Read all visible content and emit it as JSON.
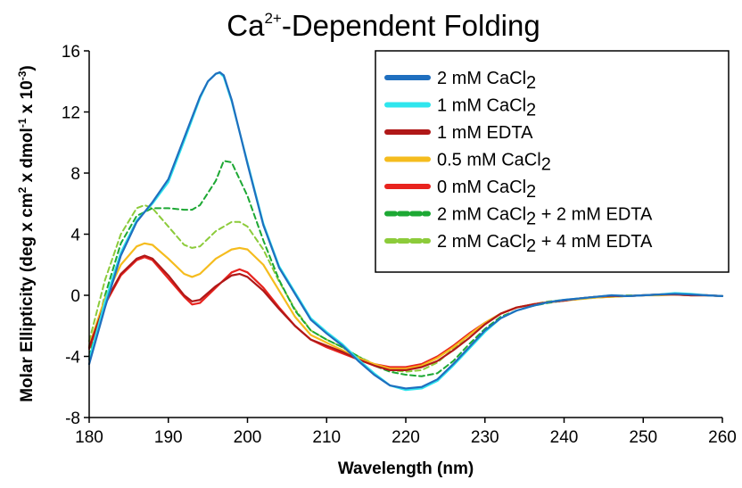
{
  "chart_data": {
    "type": "line",
    "title": {
      "base": "Ca",
      "sup": "2+",
      "rest": "-Dependent Folding"
    },
    "xlabel": "Wavelength (nm)",
    "ylabel": {
      "parts": [
        {
          "t": "Molar Ellipticity (deg x cm"
        },
        {
          "t": "2",
          "sup": true
        },
        {
          "t": " x dmol"
        },
        {
          "t": "-1",
          "sup": true
        },
        {
          "t": " x 10"
        },
        {
          "t": "-3",
          "sup": true
        },
        {
          "t": ")"
        }
      ]
    },
    "xlim": [
      180,
      260
    ],
    "ylim": [
      -8,
      16
    ],
    "xticks": [
      "180",
      "190",
      "200",
      "210",
      "220",
      "230",
      "240",
      "250",
      "260"
    ],
    "yticks": [
      "-8",
      "-4",
      "0",
      "4",
      "8",
      "12",
      "16"
    ],
    "grid": false,
    "legend_position": "top-right",
    "series": [
      {
        "name": {
          "pre": "2 mM CaCl",
          "sub": "2",
          "post": ""
        },
        "color": "#1F6FBF",
        "dash": false,
        "x": [
          180,
          182,
          184,
          186,
          188,
          190,
          192,
          194,
          195,
          196,
          196.5,
          197,
          198,
          200,
          202,
          204,
          206,
          208,
          210,
          212,
          214,
          216,
          218,
          220,
          222,
          224,
          226,
          228,
          230,
          232,
          234,
          236,
          238,
          240,
          242,
          244,
          246,
          248,
          250,
          252,
          254,
          256,
          258,
          260
        ],
        "y": [
          -4.5,
          -0.8,
          2.6,
          4.8,
          6.1,
          7.6,
          10.3,
          13.0,
          14.0,
          14.5,
          14.6,
          14.4,
          12.8,
          8.6,
          4.6,
          1.8,
          0.1,
          -1.6,
          -2.5,
          -3.3,
          -4.3,
          -5.2,
          -5.9,
          -6.1,
          -6.0,
          -5.5,
          -4.5,
          -3.4,
          -2.3,
          -1.5,
          -1.0,
          -0.7,
          -0.45,
          -0.3,
          -0.2,
          -0.1,
          0.0,
          -0.05,
          0.0,
          0.05,
          0.1,
          0.05,
          0.0,
          -0.05
        ]
      },
      {
        "name": {
          "pre": "1 mM CaCl",
          "sub": "2",
          "post": ""
        },
        "color": "#2FE6EE",
        "dash": false,
        "x": [
          180,
          182,
          184,
          186,
          188,
          190,
          192,
          194,
          195,
          196,
          196.5,
          197,
          198,
          200,
          202,
          204,
          206,
          208,
          210,
          212,
          214,
          216,
          218,
          220,
          222,
          224,
          226,
          228,
          230,
          232,
          234,
          236,
          238,
          240,
          242,
          244,
          246,
          248,
          250,
          252,
          254,
          256,
          258,
          260
        ],
        "y": [
          -4.2,
          -0.4,
          2.8,
          4.9,
          6.0,
          7.4,
          10.1,
          12.9,
          14.0,
          14.5,
          14.55,
          14.3,
          12.7,
          8.7,
          4.7,
          1.9,
          0.2,
          -1.5,
          -2.4,
          -3.2,
          -4.2,
          -5.1,
          -5.9,
          -6.2,
          -6.1,
          -5.6,
          -4.6,
          -3.5,
          -2.4,
          -1.5,
          -1.0,
          -0.7,
          -0.45,
          -0.3,
          -0.2,
          -0.1,
          0.0,
          -0.05,
          0.0,
          0.05,
          0.15,
          0.1,
          0.0,
          -0.05
        ]
      },
      {
        "name": {
          "pre": "1 mM EDTA",
          "sub": "",
          "post": ""
        },
        "color": "#B01818",
        "dash": false,
        "x": [
          180,
          182,
          184,
          186,
          187,
          188,
          190,
          192,
          193,
          194,
          196,
          198,
          199,
          200,
          202,
          204,
          206,
          208,
          210,
          212,
          214,
          216,
          218,
          220,
          222,
          224,
          226,
          228,
          230,
          232,
          234,
          236,
          238,
          240,
          242,
          244,
          246,
          248,
          250,
          252,
          254,
          256,
          258,
          260
        ],
        "y": [
          -3.4,
          -0.5,
          1.4,
          2.4,
          2.6,
          2.4,
          1.3,
          0.0,
          -0.4,
          -0.3,
          0.6,
          1.3,
          1.4,
          1.2,
          0.3,
          -0.9,
          -2.0,
          -2.9,
          -3.3,
          -3.7,
          -4.2,
          -4.6,
          -4.9,
          -4.9,
          -4.7,
          -4.3,
          -3.6,
          -2.8,
          -1.9,
          -1.2,
          -0.8,
          -0.6,
          -0.45,
          -0.35,
          -0.2,
          -0.1,
          -0.05,
          -0.05,
          0.0,
          0.05,
          0.05,
          0.0,
          0.0,
          -0.05
        ]
      },
      {
        "name": {
          "pre": "0.5 mM CaCl",
          "sub": "2",
          "post": ""
        },
        "color": "#F5BC1E",
        "dash": false,
        "x": [
          180,
          182,
          184,
          186,
          187,
          188,
          190,
          192,
          193,
          194,
          196,
          198,
          199,
          200,
          202,
          204,
          206,
          208,
          210,
          212,
          214,
          216,
          218,
          220,
          222,
          224,
          226,
          228,
          230,
          232,
          234,
          236,
          238,
          240,
          242,
          244,
          246,
          248,
          250,
          252,
          254,
          256,
          258,
          260
        ],
        "y": [
          -3.3,
          -0.2,
          2.0,
          3.2,
          3.4,
          3.3,
          2.4,
          1.4,
          1.2,
          1.4,
          2.4,
          3.0,
          3.1,
          3.0,
          2.0,
          0.3,
          -1.4,
          -2.6,
          -3.1,
          -3.6,
          -4.1,
          -4.5,
          -4.8,
          -4.8,
          -4.6,
          -4.1,
          -3.4,
          -2.6,
          -1.8,
          -1.2,
          -0.8,
          -0.6,
          -0.45,
          -0.35,
          -0.25,
          -0.15,
          -0.1,
          -0.05,
          0.0,
          0.0,
          0.05,
          0.0,
          0.0,
          -0.05
        ]
      },
      {
        "name": {
          "pre": "0 mM CaCl",
          "sub": "2",
          "post": ""
        },
        "color": "#E8231E",
        "dash": false,
        "x": [
          180,
          182,
          184,
          186,
          187,
          188,
          190,
          192,
          193,
          194,
          196,
          198,
          199,
          200,
          202,
          204,
          206,
          208,
          210,
          212,
          214,
          216,
          218,
          220,
          222,
          224,
          226,
          228,
          230,
          232,
          234,
          236,
          238,
          240,
          242,
          244,
          246,
          248,
          250,
          252,
          254,
          256,
          258,
          260
        ],
        "y": [
          -3.5,
          -0.6,
          1.3,
          2.3,
          2.5,
          2.3,
          1.1,
          -0.1,
          -0.6,
          -0.5,
          0.5,
          1.5,
          1.7,
          1.5,
          0.5,
          -0.8,
          -2.0,
          -2.9,
          -3.4,
          -3.8,
          -4.2,
          -4.5,
          -4.7,
          -4.7,
          -4.5,
          -4.0,
          -3.3,
          -2.5,
          -1.8,
          -1.2,
          -0.8,
          -0.6,
          -0.45,
          -0.35,
          -0.2,
          -0.1,
          -0.05,
          -0.05,
          0.0,
          0.05,
          0.1,
          0.0,
          0.0,
          -0.05
        ]
      },
      {
        "name": {
          "pre": "2 mM CaCl",
          "sub": "2",
          "post": " + 2 mM EDTA"
        },
        "color": "#1DA834",
        "dash": true,
        "x": [
          180,
          182,
          184,
          186,
          188,
          190,
          192,
          193,
          194,
          196,
          197,
          198,
          200,
          202,
          204,
          206,
          208,
          210,
          212,
          214,
          216,
          218,
          220,
          222,
          224,
          226,
          228,
          230,
          232,
          234,
          236,
          238,
          240,
          242,
          244,
          246,
          248,
          250,
          252,
          254,
          256,
          258,
          260
        ],
        "y": [
          -4.0,
          0.0,
          3.4,
          5.2,
          5.7,
          5.7,
          5.6,
          5.6,
          5.9,
          7.5,
          8.8,
          8.7,
          6.5,
          3.6,
          1.0,
          -1.0,
          -2.3,
          -2.9,
          -3.4,
          -4.0,
          -4.6,
          -5.0,
          -5.2,
          -5.3,
          -5.1,
          -4.3,
          -3.2,
          -2.2,
          -1.4,
          -1.0,
          -0.7,
          -0.5,
          -0.35,
          -0.25,
          -0.15,
          -0.1,
          -0.05,
          0.0,
          0.05,
          0.05,
          0.0,
          0.0,
          -0.05
        ]
      },
      {
        "name": {
          "pre": "2 mM CaCl",
          "sub": "2",
          "post": " + 4 mM EDTA"
        },
        "color": "#8CCB3A",
        "dash": true,
        "x": [
          180,
          182,
          184,
          186,
          187,
          188,
          190,
          192,
          193,
          194,
          196,
          198,
          199,
          200,
          202,
          204,
          206,
          208,
          210,
          212,
          214,
          216,
          218,
          220,
          222,
          224,
          226,
          228,
          230,
          232,
          234,
          236,
          238,
          240,
          242,
          244,
          246,
          248,
          250,
          252,
          254,
          256,
          258,
          260
        ],
        "y": [
          -3.0,
          1.0,
          4.0,
          5.7,
          5.9,
          5.7,
          4.5,
          3.3,
          3.1,
          3.2,
          4.2,
          4.8,
          4.8,
          4.5,
          3.0,
          0.9,
          -0.9,
          -2.3,
          -2.9,
          -3.4,
          -4.0,
          -4.5,
          -4.9,
          -5.0,
          -4.9,
          -4.4,
          -3.5,
          -2.6,
          -1.8,
          -1.2,
          -0.8,
          -0.6,
          -0.4,
          -0.3,
          -0.2,
          -0.1,
          -0.05,
          0.0,
          0.0,
          0.05,
          0.05,
          0.0,
          0.0,
          -0.05
        ]
      }
    ]
  }
}
